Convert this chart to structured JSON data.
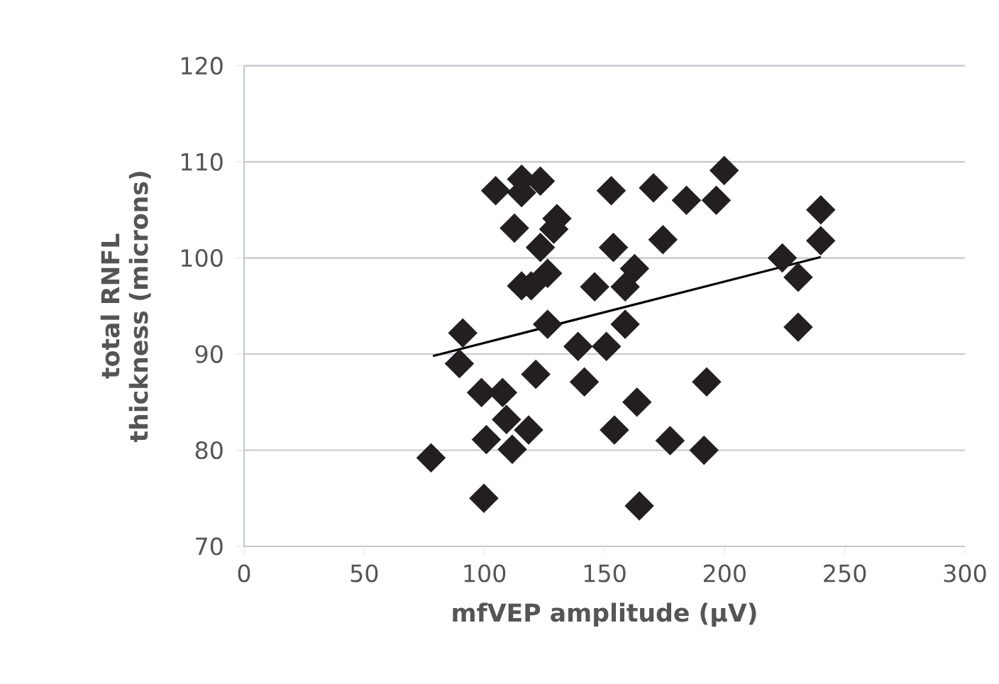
{
  "chart_data": {
    "type": "scatter",
    "xlabel": "mfVEP amplitude (μV)",
    "ylabel": "total RNFL thickness (microns)",
    "xlim": [
      0,
      300
    ],
    "ylim": [
      70,
      120
    ],
    "xticks": [
      0,
      50,
      100,
      150,
      200,
      250,
      300
    ],
    "yticks": [
      70,
      80,
      90,
      100,
      110,
      120
    ],
    "grid": "y",
    "series": [
      {
        "marker": "diamond",
        "color": "#231f20",
        "x": [
          104.7,
          115.5,
          115.5,
          123.3,
          112.5,
          130.2,
          128.9,
          123.3,
          115.5,
          119.5,
          126.3,
          145.9,
          91,
          126.3,
          139,
          150.8,
          89.6,
          121.4,
          141.6,
          98.8,
          107.6,
          109.2,
          118.4,
          100.8,
          111.6,
          77.8,
          99.8,
          152.8,
          170.4,
          184.1,
          196.5,
          199.8,
          153.7,
          174.3,
          162.5,
          158.6,
          158.6,
          192.5,
          163.5,
          154.1,
          177.3,
          191.4,
          164.5,
          240,
          240,
          224,
          230.6,
          230.6
        ],
        "values": [
          107,
          108.2,
          106.8,
          108,
          103.1,
          104.1,
          103,
          101.1,
          97.1,
          97.1,
          98.4,
          97,
          92.2,
          93.1,
          90.8,
          90.8,
          89,
          87.9,
          87.1,
          86,
          86,
          83.2,
          82.1,
          81.1,
          80.1,
          79.2,
          75,
          107,
          107.3,
          106,
          106,
          109.1,
          101.1,
          101.9,
          98.9,
          97,
          93.1,
          87.1,
          85,
          82.1,
          81,
          80,
          74.2,
          105,
          101.8,
          100,
          98,
          92.8
        ]
      },
      {
        "type": "line",
        "color": "#000000",
        "x": [
          78.6,
          240
        ],
        "values": [
          89.8,
          100.1
        ]
      }
    ]
  }
}
